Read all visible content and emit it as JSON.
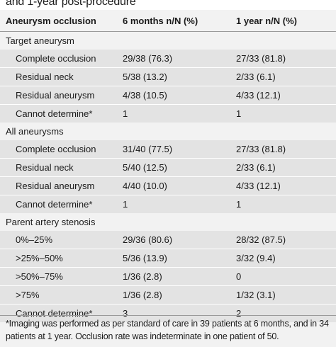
{
  "title": "and 1-year post-procedure",
  "columns": [
    "Aneurysm occlusion",
    "6 months n/N (%)",
    "1 year n/N (%)"
  ],
  "rows": [
    {
      "kind": "section",
      "label": "Target aneurysm"
    },
    {
      "kind": "data",
      "label": "Complete occlusion",
      "m6": "29/38 (76.3)",
      "y1": "27/33 (81.8)"
    },
    {
      "kind": "data",
      "label": "Residual neck",
      "m6": "5/38 (13.2)",
      "y1": "2/33 (6.1)"
    },
    {
      "kind": "data",
      "label": "Residual aneurysm",
      "m6": "4/38 (10.5)",
      "y1": "4/33 (12.1)"
    },
    {
      "kind": "data",
      "label": "Cannot determine*",
      "m6": "1",
      "y1": "1"
    },
    {
      "kind": "section",
      "label": "All aneurysms"
    },
    {
      "kind": "data",
      "label": "Complete occlusion",
      "m6": "31/40 (77.5)",
      "y1": "27/33 (81.8)"
    },
    {
      "kind": "data",
      "label": "Residual neck",
      "m6": "5/40 (12.5)",
      "y1": "2/33 (6.1)"
    },
    {
      "kind": "data",
      "label": "Residual aneurysm",
      "m6": "4/40 (10.0)",
      "y1": "4/33 (12.1)"
    },
    {
      "kind": "data",
      "label": "Cannot determine*",
      "m6": "1",
      "y1": "1"
    },
    {
      "kind": "section",
      "label": "Parent artery stenosis"
    },
    {
      "kind": "data",
      "label": "0%–25%",
      "m6": "29/36 (80.6)",
      "y1": "28/32 (87.5)"
    },
    {
      "kind": "data",
      "label": ">25%–50%",
      "m6": "5/36 (13.9)",
      "y1": "3/32 (9.4)"
    },
    {
      "kind": "data",
      "label": ">50%–75%",
      "m6": "1/36 (2.8)",
      "y1": "0"
    },
    {
      "kind": "data",
      "label": ">75%",
      "m6": "1/36 (2.8)",
      "y1": "1/32 (3.1)"
    },
    {
      "kind": "data",
      "label": "Cannot determine*",
      "m6": "3",
      "y1": "2"
    }
  ],
  "footnote": "*Imaging was performed as per standard of care in 39 patients at 6 months, and in 34 patients at 1 year. Occlusion rate was indeterminate in one patient of 50."
}
